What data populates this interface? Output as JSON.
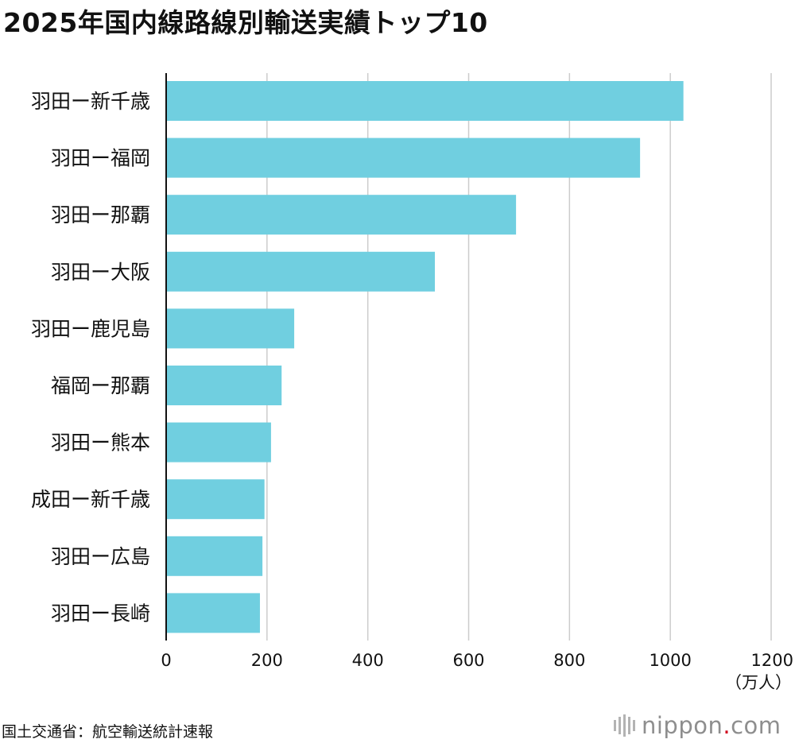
{
  "title": "2025年国内線路線別輸送実績トップ10",
  "source": "国土交通省：航空輸送統計速報",
  "brand": {
    "name": "nippon",
    "dot": ".",
    "tld": "com",
    "dot_color": "#d0021b",
    "icon": "nippon-logo-bars-icon"
  },
  "chart_data": {
    "type": "bar",
    "orientation": "horizontal",
    "categories": [
      "羽田ー新千歳",
      "羽田ー福岡",
      "羽田ー那覇",
      "羽田ー大阪",
      "羽田ー鹿児島",
      "福岡ー那覇",
      "羽田ー熊本",
      "成田ー新千歳",
      "羽田ー広島",
      "羽田ー長崎"
    ],
    "values": [
      1026,
      940,
      694,
      533,
      254,
      229,
      208,
      195,
      191,
      186
    ],
    "xlim": [
      0,
      1200
    ],
    "xticks": [
      0,
      200,
      400,
      600,
      800,
      1000,
      1200
    ],
    "unit": "（万人）",
    "bar_color": "#70cfe0",
    "grid": true,
    "legend": "none"
  }
}
